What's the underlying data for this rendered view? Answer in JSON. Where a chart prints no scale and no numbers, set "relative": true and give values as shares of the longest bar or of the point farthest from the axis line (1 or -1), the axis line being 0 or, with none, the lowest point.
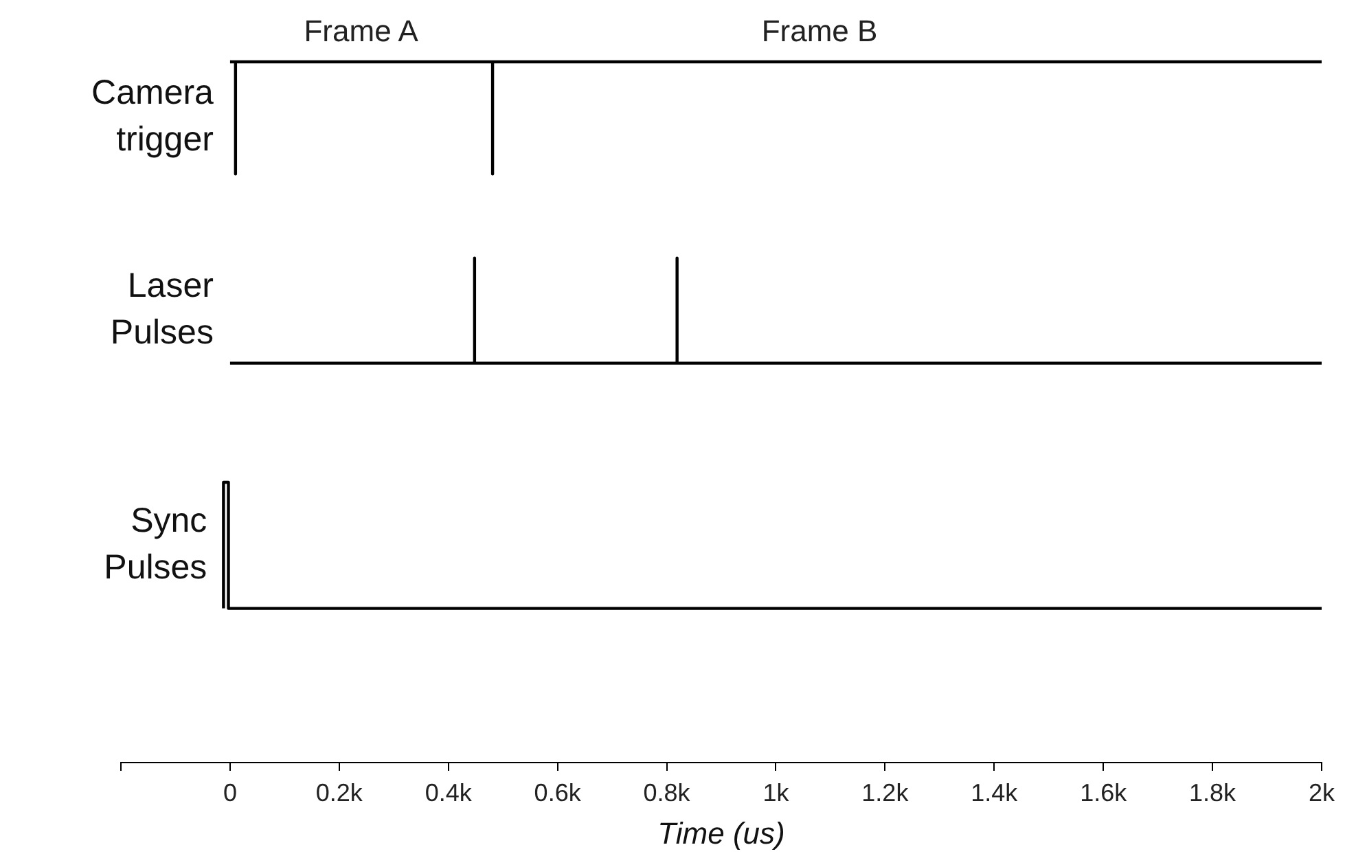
{
  "chart_data": {
    "type": "line",
    "xlabel": "Time (us)",
    "relative": true,
    "marker": "none",
    "tick_labels": "x",
    "legend": false,
    "xlim": [
      -200,
      2000
    ],
    "xticks": [
      {
        "value": -200,
        "label": null
      },
      0,
      {
        "value": 200,
        "label": "0.2k"
      },
      {
        "value": 400,
        "label": "0.4k"
      },
      {
        "value": 600,
        "label": "0.6k"
      },
      {
        "value": 800,
        "label": "0.8k"
      },
      {
        "value": 1000,
        "label": "1k"
      },
      {
        "value": 1200,
        "label": "1.2k"
      },
      {
        "value": 1400,
        "label": "1.4k"
      },
      {
        "value": 1600,
        "label": "1.6k"
      },
      {
        "value": 1800,
        "label": "1.8k"
      },
      {
        "value": 2000,
        "label": "2k"
      }
    ],
    "annotations": [
      {
        "text": "Frame A",
        "x": 240,
        "y": 1
      },
      {
        "text": "Frame B",
        "x": 1080,
        "y": 1
      }
    ],
    "series": [
      {
        "name": "Camera trigger",
        "color": "#000000",
        "x": [
          0,
          10,
          10,
          10,
          481,
          481,
          481,
          2000
        ],
        "values": [
          1,
          1,
          0.84,
          1,
          1,
          0.84,
          1,
          1
        ]
      },
      {
        "name": "Laser Pulses",
        "color": "#000000",
        "x": [
          0,
          448,
          448,
          448,
          819,
          819,
          819,
          2000
        ],
        "values": [
          0.57,
          0.57,
          0.72,
          0.57,
          0.57,
          0.72,
          0.57,
          0.57
        ]
      },
      {
        "name": "Sync Pulses",
        "color": "#000000",
        "x": [
          -12,
          -12,
          -3,
          -3,
          2000
        ],
        "values": [
          0.22,
          0.4,
          0.4,
          0.22,
          0.22
        ]
      }
    ]
  }
}
